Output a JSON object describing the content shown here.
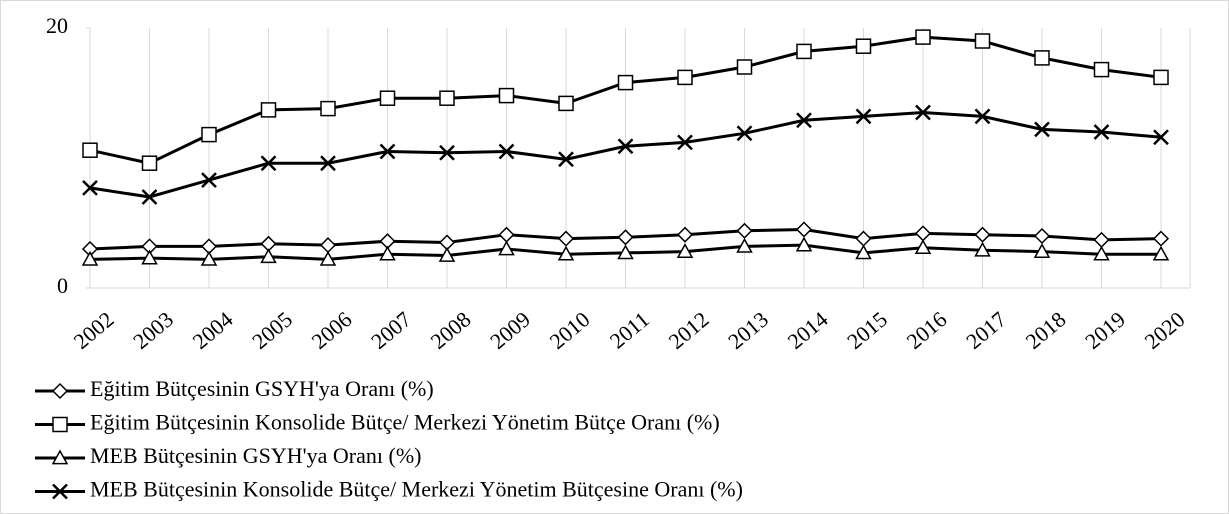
{
  "chart_data": {
    "type": "line",
    "categories": [
      "2002",
      "2003",
      "2004",
      "2005",
      "2006",
      "2007",
      "2008",
      "2009",
      "2010",
      "2011",
      "2012",
      "2013",
      "2014",
      "2015",
      "2016",
      "2017",
      "2018",
      "2019",
      "2020"
    ],
    "series": [
      {
        "name": "Eğitim Bütçesinin GSYH'ya Oranı (%)",
        "color": "#000000",
        "marker": "diamond",
        "values": [
          3.0,
          3.2,
          3.2,
          3.4,
          3.3,
          3.6,
          3.5,
          4.1,
          3.8,
          3.9,
          4.1,
          4.4,
          4.5,
          3.8,
          4.2,
          4.1,
          4.0,
          3.7,
          3.8
        ]
      },
      {
        "name": "Eğitim Bütçesinin Konsolide Bütçe/ Merkezi Yönetim Bütçe Oranı (%)",
        "color": "#000000",
        "marker": "square",
        "values": [
          10.6,
          9.6,
          11.8,
          13.7,
          13.8,
          14.6,
          14.6,
          14.8,
          14.2,
          15.8,
          16.2,
          17.0,
          18.2,
          18.6,
          19.3,
          19.0,
          17.7,
          16.8,
          16.2
        ]
      },
      {
        "name": "MEB Bütçesinin GSYH'ya Oranı (%)",
        "color": "#000000",
        "marker": "triangle",
        "values": [
          2.2,
          2.3,
          2.2,
          2.4,
          2.2,
          2.6,
          2.5,
          3.0,
          2.6,
          2.7,
          2.8,
          3.2,
          3.3,
          2.7,
          3.1,
          2.9,
          2.8,
          2.6,
          2.6
        ]
      },
      {
        "name": "MEB Bütçesinin Konsolide Bütçe/ Merkezi Yönetim Bütçesine Oranı (%)",
        "color": "#000000",
        "marker": "x",
        "values": [
          7.7,
          7.0,
          8.3,
          9.6,
          9.6,
          10.5,
          10.4,
          10.5,
          9.9,
          10.9,
          11.2,
          11.9,
          12.9,
          13.2,
          13.5,
          13.2,
          12.2,
          12.0,
          11.6
        ]
      }
    ],
    "ylim": [
      0,
      20
    ],
    "yticks": [
      0,
      20
    ],
    "grid": true,
    "legend": "bottom-left"
  }
}
